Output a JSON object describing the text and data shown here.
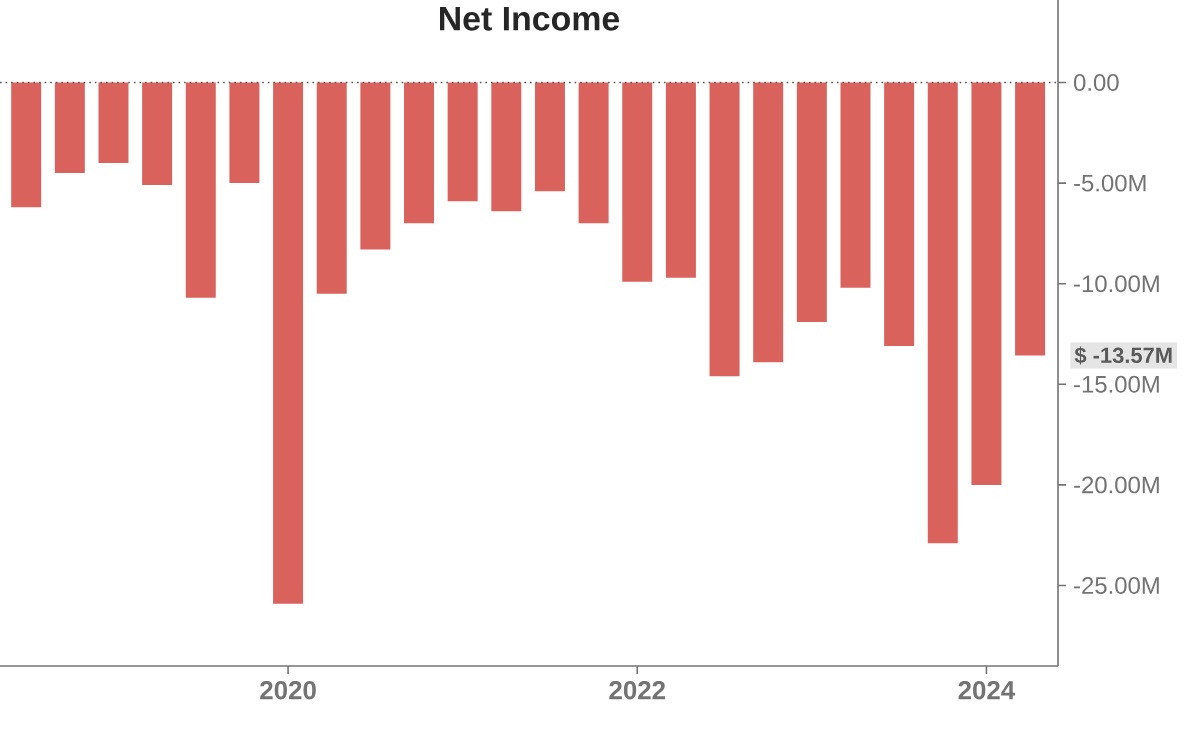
{
  "chart_data": {
    "type": "bar",
    "title": "Net Income",
    "color": "#d9635c",
    "categories": [
      null,
      null,
      null,
      null,
      null,
      null,
      "2020",
      null,
      null,
      null,
      null,
      null,
      null,
      null,
      "2022",
      null,
      null,
      null,
      null,
      null,
      null,
      null,
      "2024",
      null
    ],
    "values": [
      -6.2,
      -4.5,
      -4.0,
      -5.1,
      -10.7,
      -5.0,
      -25.9,
      -10.5,
      -8.3,
      -7.0,
      -5.9,
      -6.4,
      -5.4,
      -7.0,
      -9.9,
      -9.7,
      -14.6,
      -13.9,
      -11.9,
      -10.2,
      -13.1,
      -22.9,
      -20.0,
      -13.57
    ],
    "ylim": [
      -29,
      4.1
    ],
    "yticks": [
      {
        "value": 0,
        "label": "0.00"
      },
      {
        "value": -5,
        "label": "-5.00M"
      },
      {
        "value": -10,
        "label": "-10.00M"
      },
      {
        "value": -15,
        "label": "-15.00M"
      },
      {
        "value": -20,
        "label": "-20.00M"
      },
      {
        "value": -25,
        "label": "-25.00M"
      }
    ],
    "ref_lines": [
      {
        "axis": "y",
        "value": 0,
        "line_style": "dotted",
        "color": "#555555"
      }
    ],
    "annotations": [
      "$ -13.57M"
    ],
    "grid": false
  }
}
